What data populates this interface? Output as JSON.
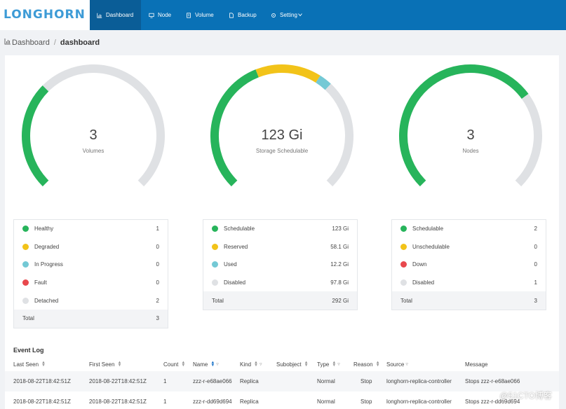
{
  "app": {
    "logo": "LONGHORN"
  },
  "nav": [
    {
      "label": "Dashboard",
      "icon": "chart-icon",
      "active": true
    },
    {
      "label": "Node",
      "icon": "monitor-icon"
    },
    {
      "label": "Volume",
      "icon": "disk-icon"
    },
    {
      "label": "Backup",
      "icon": "file-icon"
    },
    {
      "label": "Setting",
      "icon": "gear-icon",
      "has_dropdown": true
    }
  ],
  "breadcrumb": {
    "root": "Dashboard",
    "separator": "/",
    "current": "dashboard"
  },
  "gauges": [
    {
      "value": "3",
      "label": "Volumes",
      "segments": [
        {
          "fraction": 0.333,
          "color": "#27b45b"
        },
        {
          "fraction": 0.667,
          "color": "#dfe1e4"
        }
      ]
    },
    {
      "value": "123 Gi",
      "label": "Storage Schedulable",
      "segments": [
        {
          "fraction": 0.42,
          "color": "#27b45b"
        },
        {
          "fraction": 0.2,
          "color": "#f2c319"
        },
        {
          "fraction": 0.04,
          "color": "#74c9d5"
        },
        {
          "fraction": 0.34,
          "color": "#dfe1e4"
        }
      ]
    },
    {
      "value": "3",
      "label": "Nodes",
      "segments": [
        {
          "fraction": 0.7,
          "color": "#27b45b"
        },
        {
          "fraction": 0.3,
          "color": "#dfe1e4"
        }
      ]
    }
  ],
  "legends": [
    {
      "rows": [
        {
          "label": "Healthy",
          "value": "1",
          "color": "#27b45b"
        },
        {
          "label": "Degraded",
          "value": "0",
          "color": "#f2c319"
        },
        {
          "label": "In Progress",
          "value": "0",
          "color": "#74c9d5"
        },
        {
          "label": "Fault",
          "value": "0",
          "color": "#e8484d"
        },
        {
          "label": "Detached",
          "value": "2",
          "color": "#dfe1e4"
        }
      ],
      "total": {
        "label": "Total",
        "value": "3"
      }
    },
    {
      "rows": [
        {
          "label": "Schedulable",
          "value": "123 Gi",
          "color": "#27b45b"
        },
        {
          "label": "Reserved",
          "value": "58.1 Gi",
          "color": "#f2c319"
        },
        {
          "label": "Used",
          "value": "12.2 Gi",
          "color": "#74c9d5"
        },
        {
          "label": "Disabled",
          "value": "97.8 Gi",
          "color": "#dfe1e4"
        }
      ],
      "total": {
        "label": "Total",
        "value": "292 Gi"
      }
    },
    {
      "rows": [
        {
          "label": "Schedulable",
          "value": "2",
          "color": "#27b45b"
        },
        {
          "label": "Unschedulable",
          "value": "0",
          "color": "#f2c319"
        },
        {
          "label": "Down",
          "value": "0",
          "color": "#e8484d"
        },
        {
          "label": "Disabled",
          "value": "1",
          "color": "#dfe1e4"
        }
      ],
      "total": {
        "label": "Total",
        "value": "3"
      }
    }
  ],
  "event_log": {
    "title": "Event Log",
    "columns": [
      {
        "label": "Last Seen",
        "sort": true
      },
      {
        "label": "First Seen",
        "sort": true
      },
      {
        "label": "Count",
        "sort": true
      },
      {
        "label": "Name",
        "sort": true,
        "filter": true
      },
      {
        "label": "Kind",
        "sort": true,
        "filter": true
      },
      {
        "label": "Subobject",
        "sort": true
      },
      {
        "label": "Type",
        "sort": true,
        "filter": true
      },
      {
        "label": "Reason",
        "sort": true
      },
      {
        "label": "Source",
        "filter": true
      },
      {
        "label": "Message"
      }
    ],
    "rows": [
      [
        "2018-08-22T18:42:51Z",
        "2018-08-22T18:42:51Z",
        "1",
        "zzz-r-e68ae066",
        "Replica",
        "",
        "Normal",
        "Stop",
        "longhorn-replica-controller",
        "Stops zzz-r-e68ae066"
      ],
      [
        "2018-08-22T18:42:51Z",
        "2018-08-22T18:42:51Z",
        "1",
        "zzz-r-dd69d694",
        "Replica",
        "",
        "Normal",
        "Stop",
        "longhorn-replica-controller",
        "Stops zzz-r-dd69d694"
      ]
    ]
  },
  "watermark": "@51CTO博客"
}
